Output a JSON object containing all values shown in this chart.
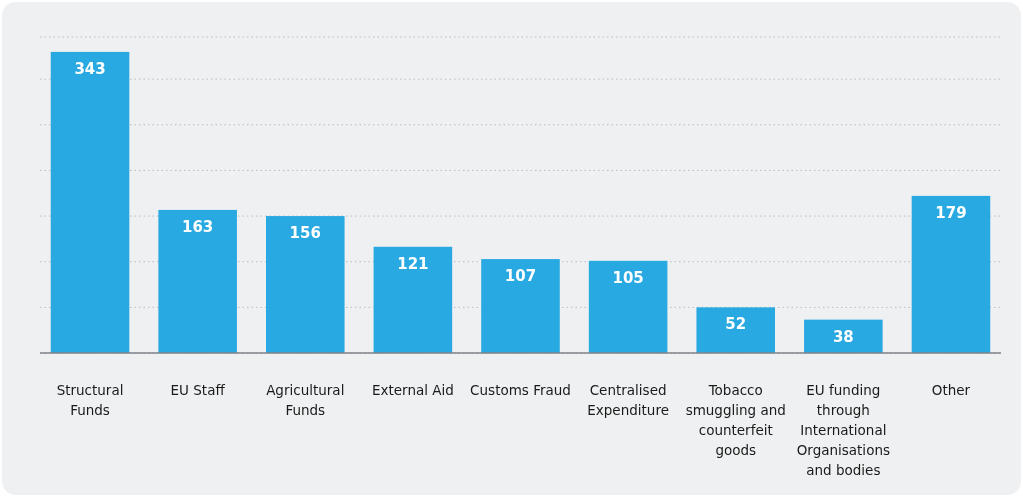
{
  "chart_data": {
    "type": "bar",
    "categories": [
      "Structural Funds",
      "EU Staff",
      "Agricultural Funds",
      "External Aid",
      "Customs Fraud",
      "Centralised Expenditure",
      "Tobacco smuggling and counterfeit goods",
      "EU funding through International Organisations and bodies",
      "Other"
    ],
    "values": [
      343,
      163,
      156,
      121,
      107,
      105,
      52,
      38,
      179
    ],
    "color": "#29a9e1",
    "data_labels": true,
    "ylim": [
      0,
      360
    ],
    "yticks": [
      {
        "value": 0,
        "label": null
      },
      {
        "value": 52,
        "label": null
      },
      {
        "value": 104,
        "label": null
      },
      {
        "value": 156,
        "label": null
      },
      {
        "value": 208,
        "label": null
      },
      {
        "value": 260,
        "label": null
      },
      {
        "value": 312,
        "label": null
      },
      {
        "value": 360,
        "label": null
      }
    ],
    "grid": "y",
    "tick_labels": "x"
  }
}
